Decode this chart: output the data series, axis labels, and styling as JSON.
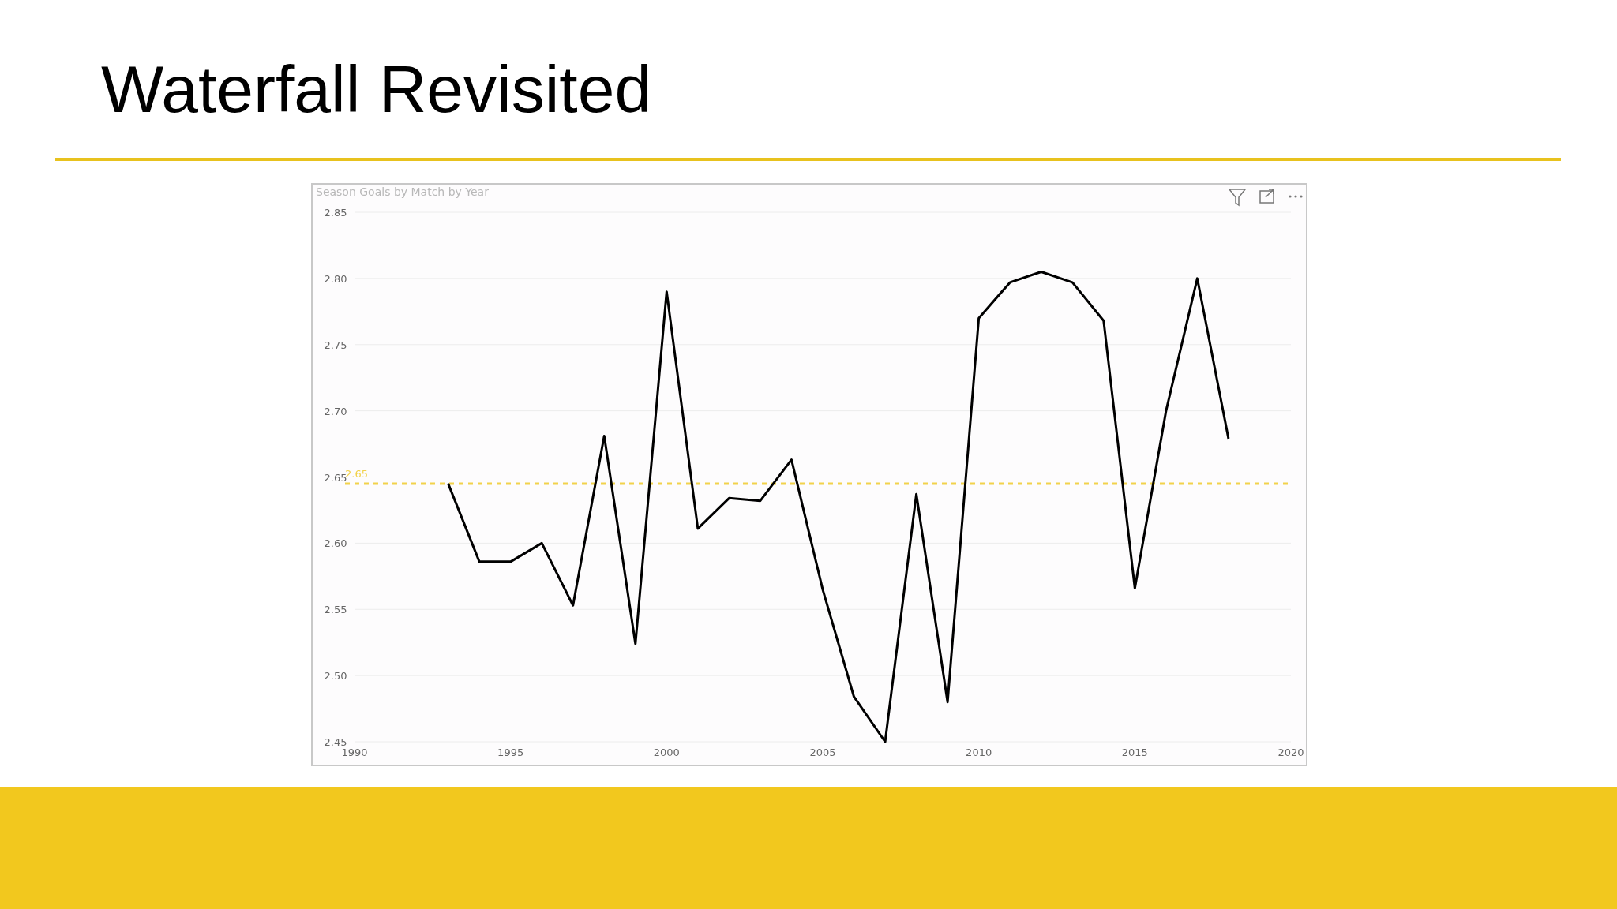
{
  "chart_data": {
    "type": "line",
    "title": "Waterfall Revisited",
    "subtitle": "Season Goals by Match by Year",
    "x": [
      1993,
      1994,
      1995,
      1996,
      1997,
      1998,
      1999,
      2000,
      2001,
      2002,
      2003,
      2004,
      2005,
      2006,
      2007,
      2008,
      2009,
      2010,
      2011,
      2012,
      2013,
      2014,
      2015,
      2016,
      2017,
      2018
    ],
    "series": [
      {
        "color": "#000000",
        "values": [
          2.645,
          2.586,
          2.586,
          2.6,
          2.553,
          2.681,
          2.524,
          2.79,
          2.611,
          2.634,
          2.632,
          2.663,
          2.565,
          2.484,
          2.45,
          2.637,
          2.48,
          2.77,
          2.797,
          2.805,
          2.797,
          2.768,
          2.566,
          2.7,
          2.8,
          2.679
        ]
      }
    ],
    "xlim": [
      1990,
      2020
    ],
    "xticks": [
      1990,
      1995,
      2000,
      2005,
      2010,
      2015,
      2020
    ],
    "ylim": [
      2.45,
      2.85
    ],
    "yticks": [
      {
        "value": 2.45,
        "label": "2.45"
      },
      {
        "value": 2.5,
        "label": "2.50"
      },
      {
        "value": 2.55,
        "label": "2.55"
      },
      {
        "value": 2.6,
        "label": "2.60"
      },
      {
        "value": 2.65,
        "label": "2.65"
      },
      {
        "value": 2.7,
        "label": "2.70"
      },
      {
        "value": 2.75,
        "label": "2.75"
      },
      {
        "value": 2.8,
        "label": "2.80"
      },
      {
        "value": 2.85,
        "label": "2.85"
      }
    ],
    "ref_lines": [
      {
        "axis": "y",
        "value": 2.645,
        "label": "2.65",
        "color": "#f2d24b",
        "line_style": "dashed"
      }
    ],
    "grid": "y"
  }
}
